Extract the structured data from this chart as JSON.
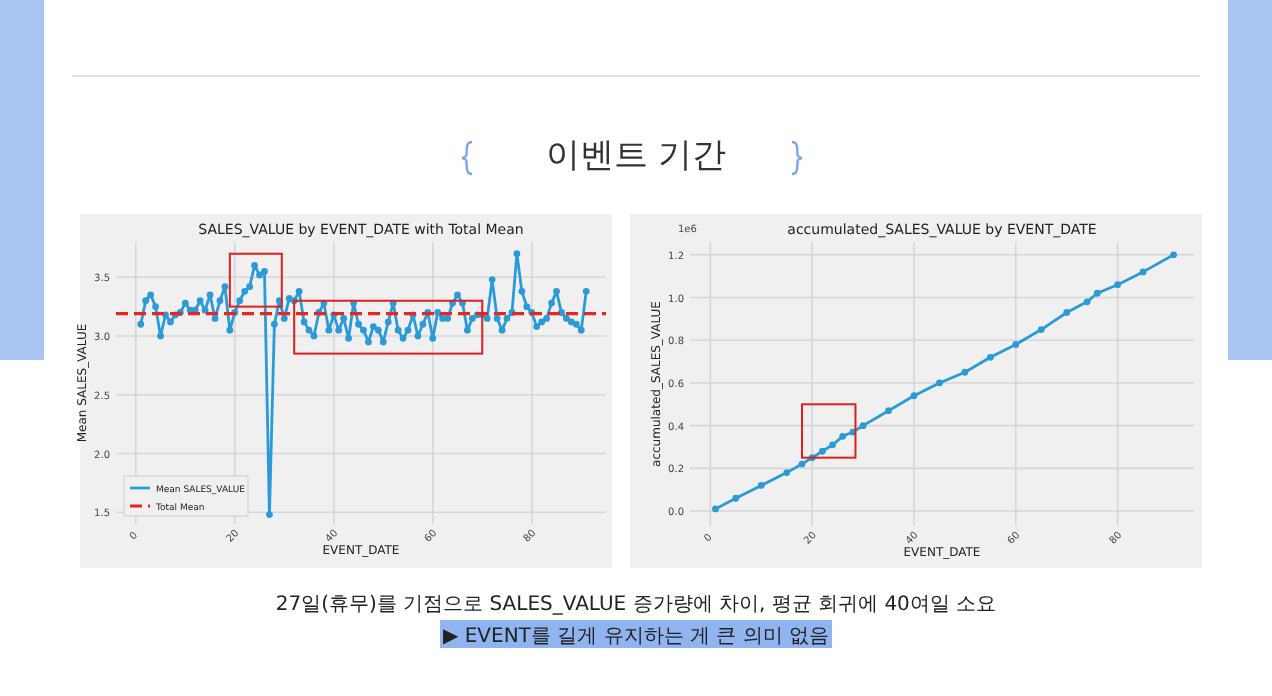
{
  "chart_data": [
    {
      "type": "other",
      "title": "이벤트 기간",
      "annotations": [
        "27일(휴무)를 기점으로 SALES_VALUE 증가량에 차이, 평균 회귀에 40여일 소요",
        "▶ EVENT를 길게 유지하는 게 큰 의미 없음"
      ]
    },
    {
      "type": "line",
      "title": "SALES_VALUE by EVENT_DATE with Total Mean",
      "xlabel": "EVENT_DATE",
      "ylabel": "Mean SALES_VALUE",
      "x": [
        1,
        2,
        3,
        4,
        5,
        6,
        7,
        8,
        9,
        10,
        11,
        12,
        13,
        14,
        15,
        16,
        17,
        18,
        19,
        20,
        21,
        22,
        23,
        24,
        25,
        26,
        27,
        28,
        29,
        30,
        31,
        32,
        33,
        34,
        35,
        36,
        37,
        38,
        39,
        40,
        41,
        42,
        43,
        44,
        45,
        46,
        47,
        48,
        49,
        50,
        51,
        52,
        53,
        54,
        55,
        56,
        57,
        58,
        59,
        60,
        61,
        62,
        63,
        64,
        65,
        66,
        67,
        68,
        69,
        70,
        71,
        72,
        73,
        74,
        75,
        76,
        77,
        78,
        79,
        80,
        81,
        82,
        83,
        84,
        85,
        86,
        87,
        88,
        89,
        90,
        91
      ],
      "series": [
        {
          "name": "Mean SALES_VALUE",
          "color": "#2b9ad8",
          "values": [
            3.1,
            3.3,
            3.35,
            3.25,
            3.0,
            3.18,
            3.12,
            3.18,
            3.2,
            3.28,
            3.22,
            3.22,
            3.3,
            3.22,
            3.35,
            3.15,
            3.3,
            3.42,
            3.05,
            3.2,
            3.3,
            3.38,
            3.42,
            3.6,
            3.52,
            3.55,
            1.48,
            3.1,
            3.3,
            3.15,
            3.32,
            3.3,
            3.38,
            3.12,
            3.05,
            3.0,
            3.2,
            3.28,
            3.05,
            3.18,
            3.05,
            3.15,
            2.98,
            3.28,
            3.1,
            3.05,
            2.95,
            3.08,
            3.05,
            2.95,
            3.12,
            3.28,
            3.05,
            2.98,
            3.05,
            3.18,
            3.0,
            3.1,
            3.2,
            2.98,
            3.2,
            3.15,
            3.15,
            3.28,
            3.35,
            3.28,
            3.05,
            3.15,
            3.18,
            3.18,
            3.15,
            3.48,
            3.15,
            3.05,
            3.15,
            3.2,
            3.7,
            3.38,
            3.25,
            3.2,
            3.08,
            3.12,
            3.15,
            3.28,
            3.38,
            3.2,
            3.15,
            3.12,
            3.1,
            3.05,
            3.38
          ]
        }
      ],
      "ref_lines": [
        {
          "axis": "y",
          "value": 3.19,
          "label": "Total Mean",
          "color": "#e8261f",
          "line_style": "dashed"
        }
      ],
      "xlim": [
        -4,
        95
      ],
      "xticks": [
        0,
        20,
        40,
        60,
        80
      ],
      "ylim": [
        1.4,
        3.8
      ],
      "yticks": [
        1.5,
        {
          "value": 2,
          "label": "2.0"
        },
        2.5,
        {
          "value": 3,
          "label": "3.0"
        },
        3.5
      ],
      "grid": true,
      "legend": "bottom left",
      "marker": "circle",
      "line_style": "solid"
    },
    {
      "type": "line",
      "title": "accumulated_SALES_VALUE by EVENT_DATE",
      "xlabel": "EVENT_DATE",
      "ylabel": "accumulated_SALES_VALUE",
      "annotations": [
        "1e6"
      ],
      "series": [
        {
          "color": "#2b9ad8",
          "x": [
            1,
            5,
            10,
            15,
            18,
            20,
            22,
            24,
            26,
            28,
            30,
            35,
            40,
            45,
            50,
            55,
            60,
            65,
            70,
            74,
            76,
            80,
            85,
            91
          ],
          "values": [
            0.01,
            0.06,
            0.12,
            0.18,
            0.22,
            0.25,
            0.28,
            0.31,
            0.35,
            0.37,
            0.4,
            0.47,
            0.54,
            0.6,
            0.65,
            0.72,
            0.78,
            0.85,
            0.93,
            0.98,
            1.02,
            1.06,
            1.12,
            1.2
          ]
        }
      ],
      "xlim": [
        -4,
        95
      ],
      "xticks": [
        0,
        20,
        40,
        60,
        80
      ],
      "ylim": [
        -0.07,
        1.26
      ],
      "yticks": [
        {
          "value": 0,
          "label": "0.0"
        },
        0.2,
        0.4,
        0.6,
        0.8,
        {
          "value": 1,
          "label": "1.0"
        },
        1.2
      ],
      "grid": true,
      "marker": "circle",
      "line_style": "solid"
    }
  ]
}
